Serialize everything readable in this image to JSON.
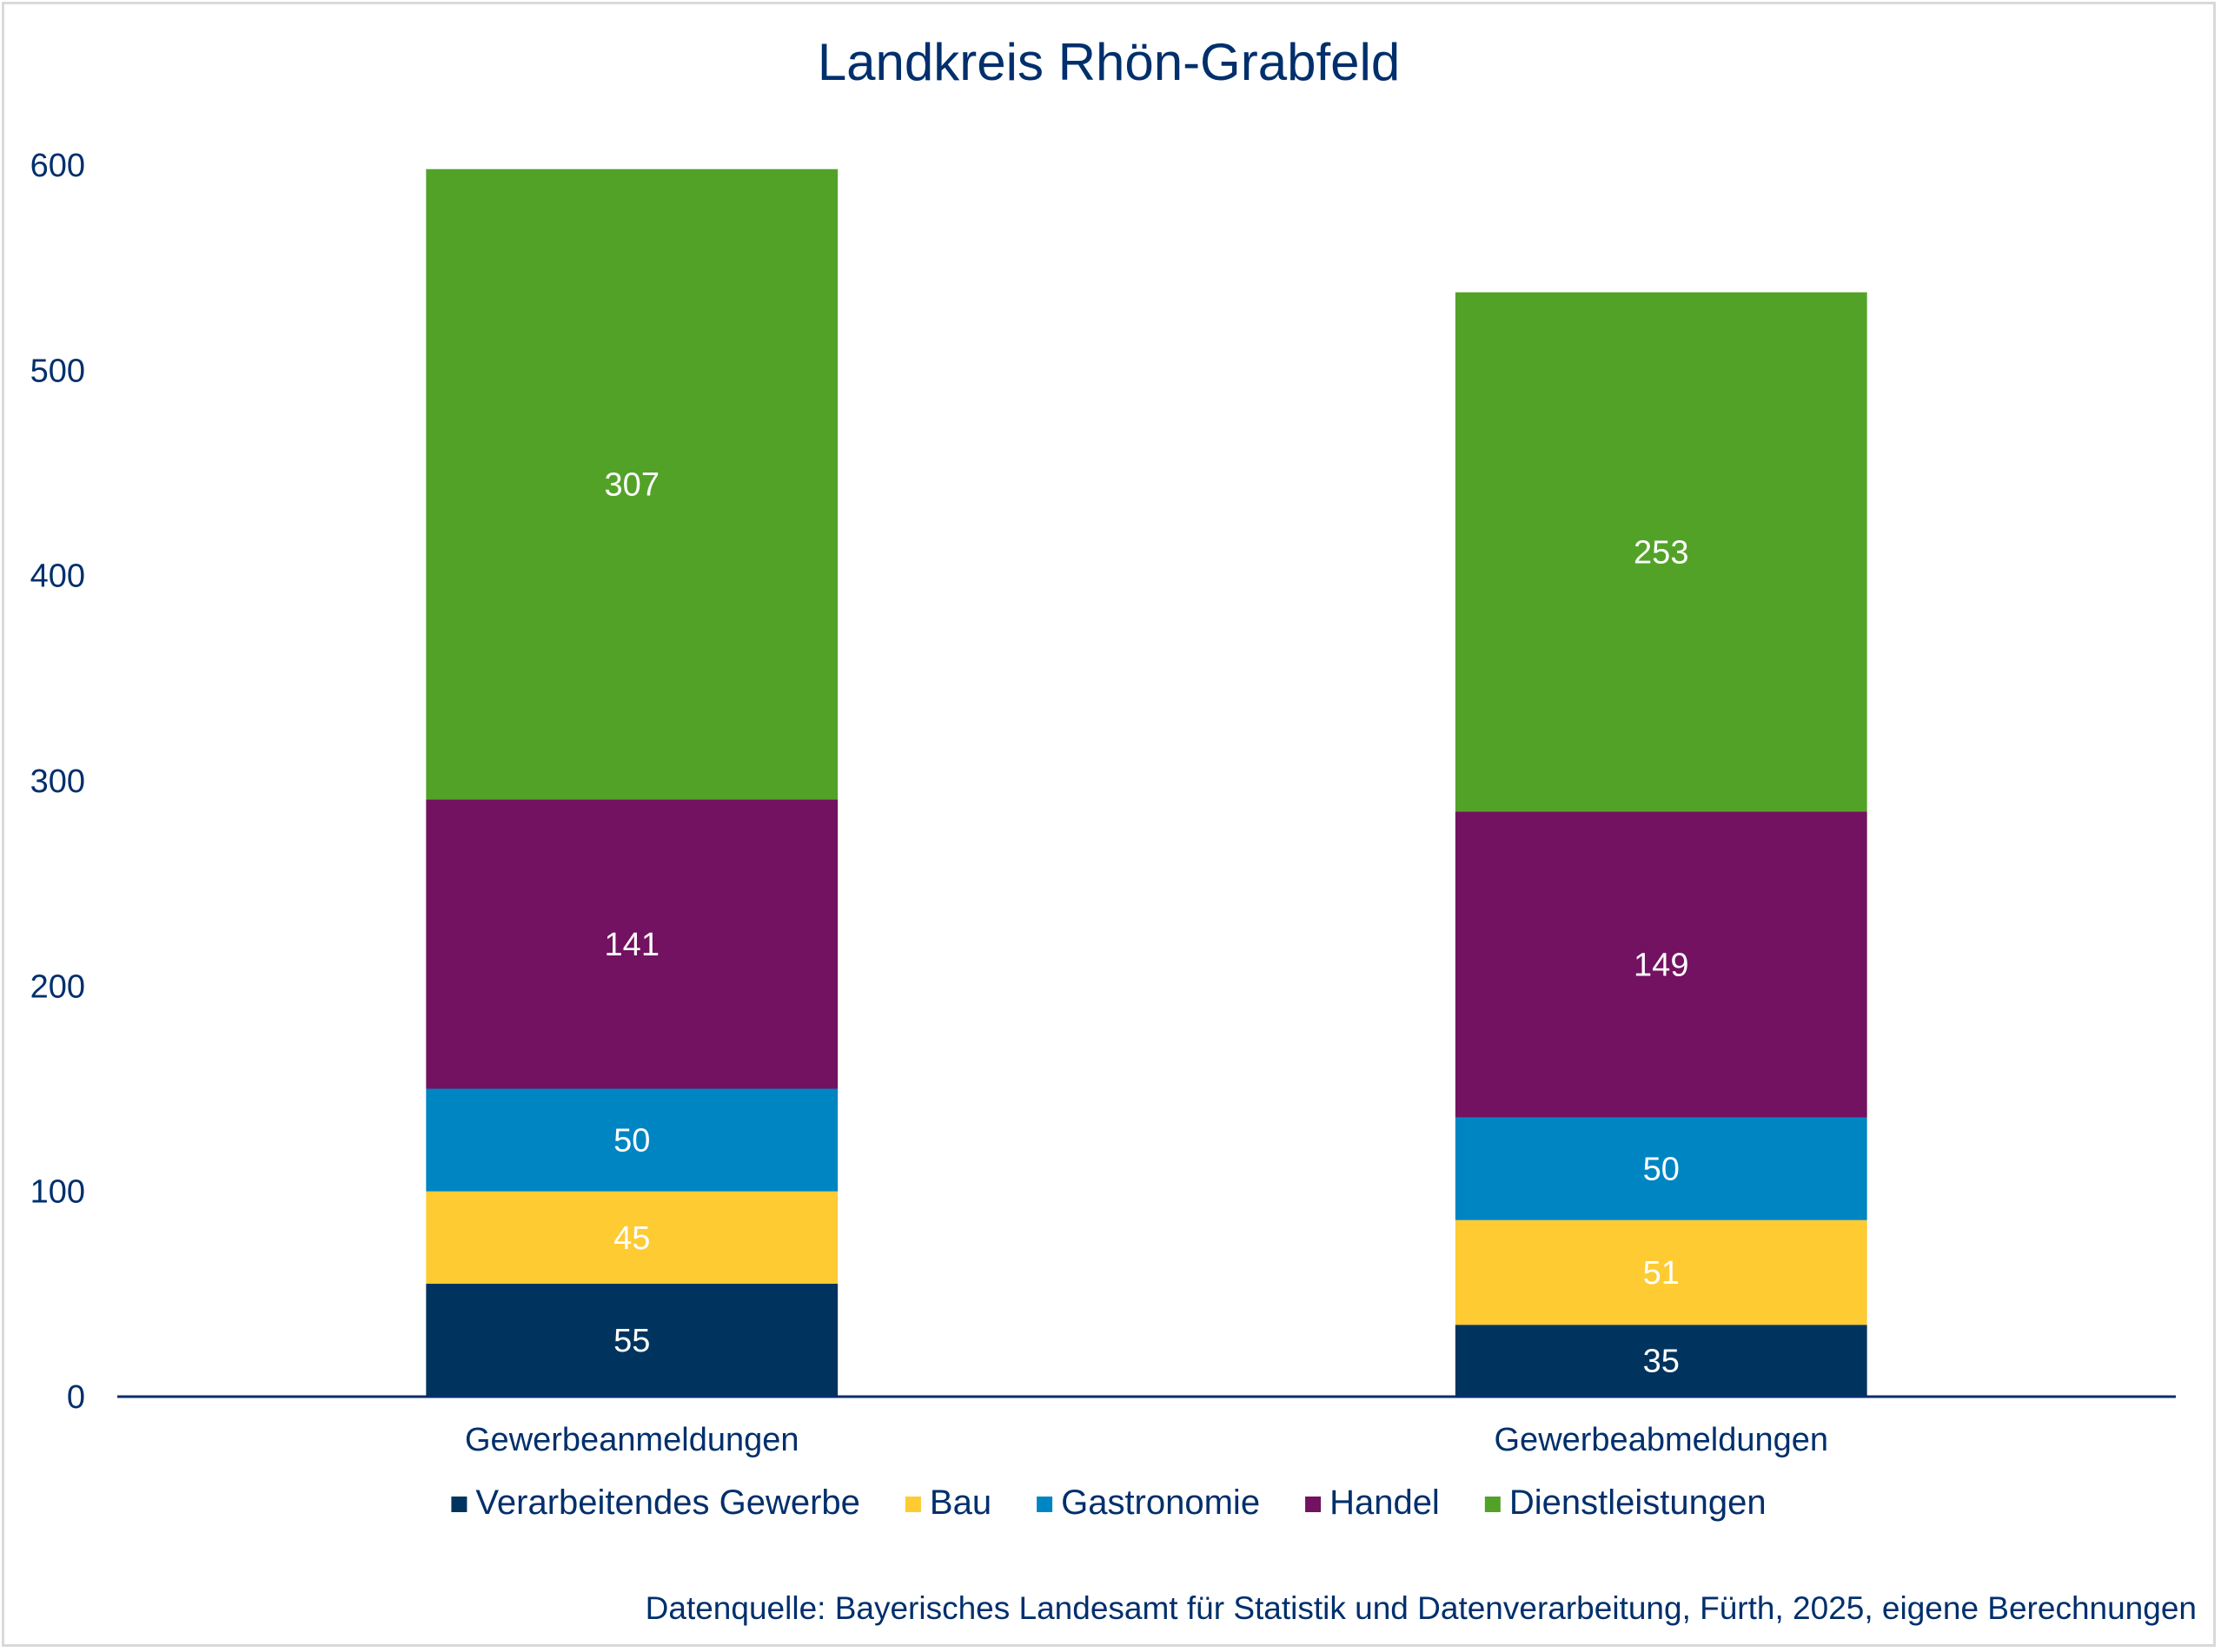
{
  "chart_data": {
    "type": "bar",
    "stacked": true,
    "title": "Landkreis Rhön-Grabfeld",
    "categories": [
      "Gewerbeanmeldungen",
      "Gewerbeabmeldungen"
    ],
    "series": [
      {
        "name": "Verarbeitendes Gewerbe",
        "color": "#00345f",
        "values": [
          55,
          35
        ]
      },
      {
        "name": "Bau",
        "color": "#fecb33",
        "values": [
          45,
          51
        ]
      },
      {
        "name": "Gastronomie",
        "color": "#0085c3",
        "values": [
          50,
          50
        ]
      },
      {
        "name": "Handel",
        "color": "#721260",
        "values": [
          141,
          149
        ]
      },
      {
        "name": "Dienstleistungen",
        "color": "#53a228",
        "values": [
          307,
          253
        ]
      }
    ],
    "ylim": [
      0,
      600
    ],
    "yticks": [
      0,
      100,
      200,
      300,
      400,
      500,
      600
    ],
    "grid": false,
    "legend": "bottom",
    "source": "Datenquelle: Bayerisches Landesamt für Statistik und Datenverarbeitung, Fürth, 2025, eigene Berechnungen"
  }
}
